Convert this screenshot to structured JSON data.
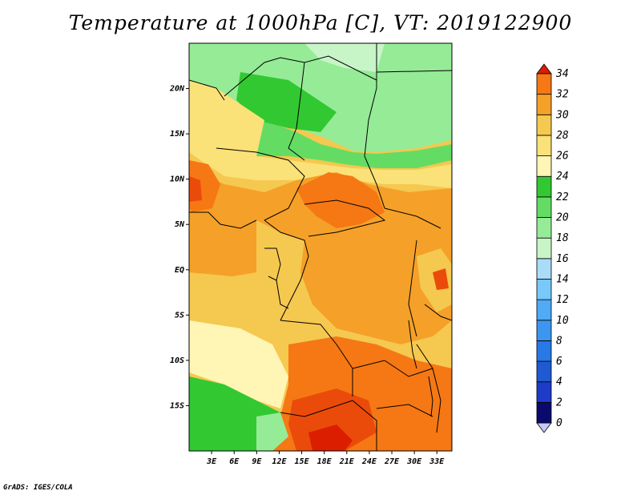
{
  "title": "Temperature at 1000hPa [C], VT: 2019122900",
  "credit": "GrADS: IGES/COLA",
  "map": {
    "lon_range": [
      0,
      35
    ],
    "lat_range": [
      -20,
      25
    ],
    "lon_ticks": [
      "3E",
      "6E",
      "9E",
      "12E",
      "15E",
      "18E",
      "21E",
      "24E",
      "27E",
      "30E",
      "33E"
    ],
    "lat_ticks": [
      "20N",
      "15N",
      "10N",
      "5N",
      "EQ",
      "5S",
      "10S",
      "15S"
    ]
  },
  "colorbar": {
    "levels": [
      "0",
      "2",
      "4",
      "6",
      "8",
      "10",
      "12",
      "14",
      "16",
      "18",
      "20",
      "22",
      "24",
      "26",
      "28",
      "30",
      "32",
      "34"
    ],
    "colors": [
      "#0a0a6e",
      "#1e3cc8",
      "#1e5ad2",
      "#2878e6",
      "#3c96f0",
      "#50aaf5",
      "#78c8fa",
      "#aadcfa",
      "#c8f5c8",
      "#96eb96",
      "#64dc64",
      "#32c832",
      "#fff5b4",
      "#fae178",
      "#f5c850",
      "#f5a028",
      "#f57814",
      "#eb4b0a",
      "#dc1e00"
    ]
  },
  "regions": [
    {
      "name": "sahara-north",
      "color": "#96eb96"
    },
    {
      "name": "sahel-green",
      "color": "#64dc64"
    },
    {
      "name": "savanna-yellow",
      "color": "#fae178"
    },
    {
      "name": "central-warm",
      "color": "#f5a028"
    },
    {
      "name": "hot-core",
      "color": "#f57814"
    },
    {
      "name": "kalahari-hot",
      "color": "#eb4b0a"
    },
    {
      "name": "southwest-green",
      "color": "#32c832"
    }
  ]
}
